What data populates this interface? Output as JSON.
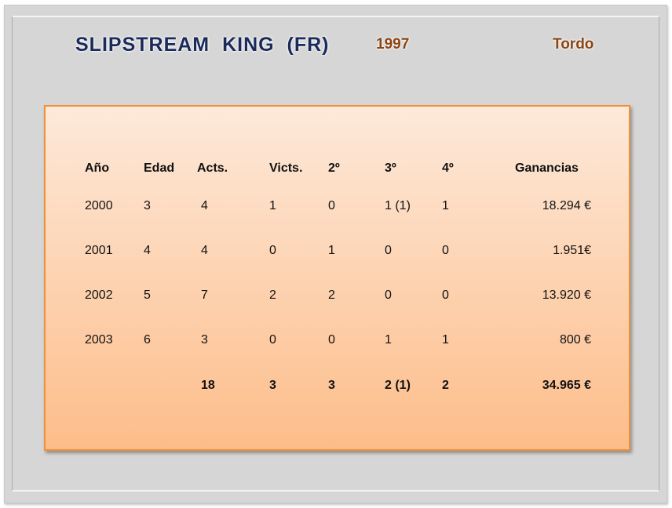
{
  "header": {
    "name": "SLIPSTREAM  KING  (FR)",
    "year": "1997",
    "coat": "Tordo"
  },
  "table": {
    "columns": [
      "Año",
      "Edad",
      "Acts.",
      "Victs.",
      "2º",
      "3º",
      "4º",
      "Ganancias"
    ],
    "rows": [
      [
        "2000",
        "3",
        "4",
        "1",
        "0",
        "1 (1)",
        "1",
        "18.294 €"
      ],
      [
        "2001",
        "4",
        "4",
        "0",
        "1",
        "0",
        "0",
        "1.951€"
      ],
      [
        "2002",
        "5",
        "7",
        "2",
        "2",
        "0",
        "0",
        "13.920 €"
      ],
      [
        "2003",
        "6",
        "3",
        "0",
        "0",
        "1",
        "1",
        "800 €"
      ]
    ],
    "totals": [
      "",
      "",
      "18",
      "3",
      "3",
      "2 (1)",
      "2",
      "34.965 €"
    ]
  }
}
